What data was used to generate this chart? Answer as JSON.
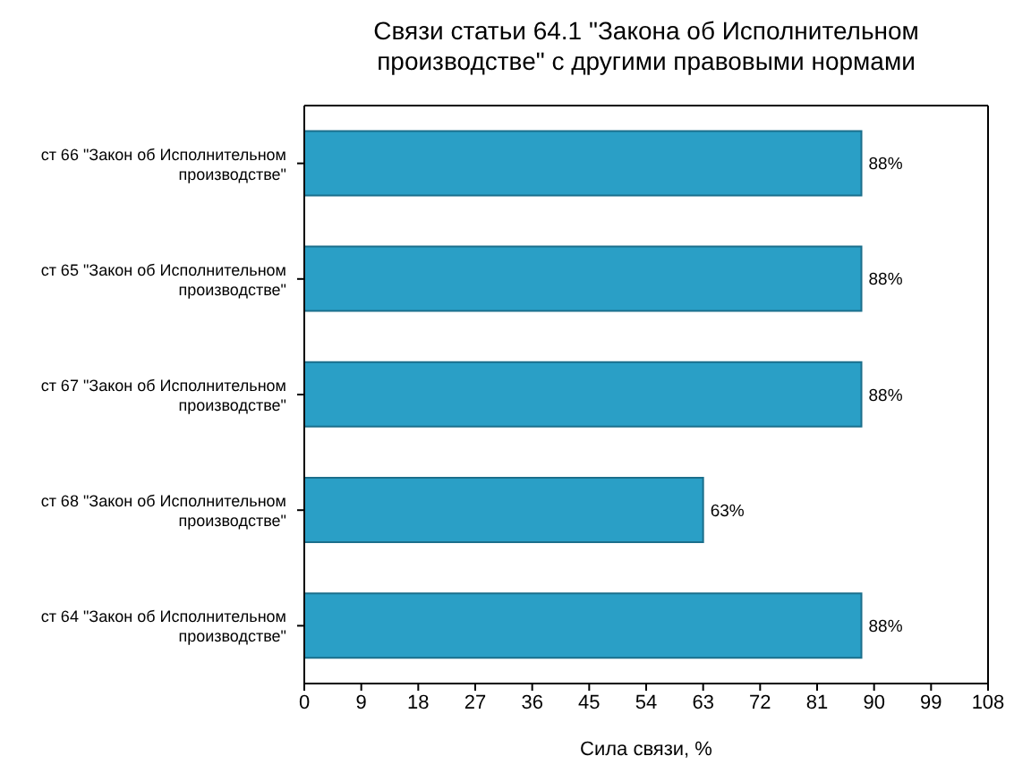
{
  "chart_data": {
    "type": "bar",
    "orientation": "horizontal",
    "title": "Связи статьи 64.1 \"Закона об Исполнительном производстве\" с другими правовыми нормами",
    "xlabel": "Сила связи, %",
    "categories": [
      "ст 66 \"Закон об Исполнительном производстве\"",
      "ст 65 \"Закон об Исполнительном производстве\"",
      "ст 67 \"Закон об Исполнительном производстве\"",
      "ст 68 \"Закон об Исполнительном производстве\"",
      "ст 64 \"Закон об Исполнительном производстве\""
    ],
    "values": [
      88,
      88,
      88,
      63,
      88
    ],
    "value_labels": [
      "88%",
      "88%",
      "88%",
      "63%",
      "88%"
    ],
    "color": "#2a9fc6",
    "xlim": [
      0,
      108
    ],
    "xticks": [
      0,
      9,
      18,
      27,
      36,
      45,
      54,
      63,
      72,
      81,
      90,
      99,
      108
    ],
    "grid": false
  }
}
